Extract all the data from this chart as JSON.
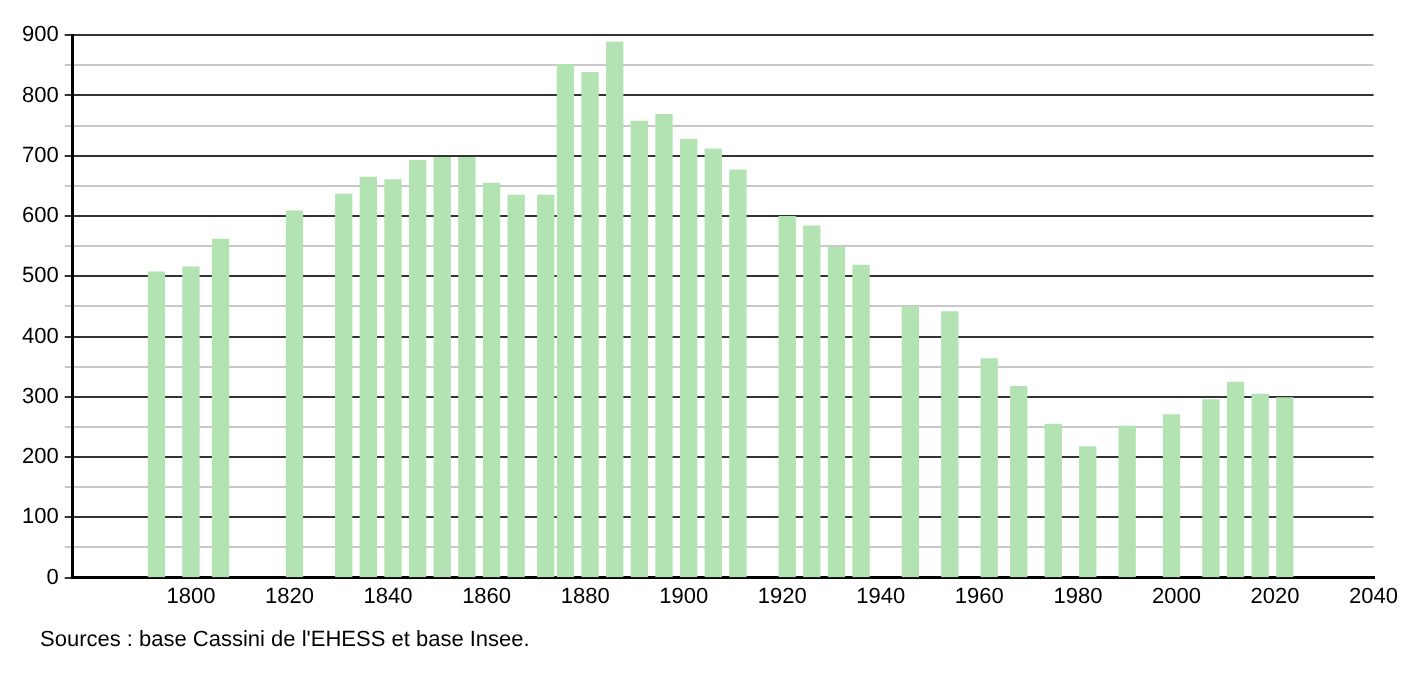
{
  "chart_data": {
    "type": "bar",
    "x": [
      1793,
      1800,
      1806,
      1821,
      1831,
      1836,
      1841,
      1846,
      1851,
      1856,
      1861,
      1866,
      1872,
      1876,
      1881,
      1886,
      1891,
      1896,
      1901,
      1906,
      1911,
      1921,
      1926,
      1931,
      1936,
      1946,
      1954,
      1962,
      1968,
      1975,
      1982,
      1990,
      1999,
      2007,
      2012,
      2017,
      2022
    ],
    "values": [
      507,
      515,
      561,
      608,
      636,
      664,
      660,
      692,
      697,
      697,
      654,
      634,
      634,
      851,
      838,
      888,
      757,
      768,
      727,
      711,
      676,
      599,
      583,
      548,
      518,
      449,
      441,
      363,
      317,
      254,
      217,
      251,
      270,
      295,
      324,
      304,
      298
    ],
    "color": "#b3e3b3",
    "xlim": [
      1776,
      2040
    ],
    "xticks": [
      1800,
      1820,
      1840,
      1860,
      1880,
      1900,
      1920,
      1940,
      1960,
      1980,
      2000,
      2020,
      2040
    ],
    "ylim": [
      0,
      900
    ],
    "yticks": [
      0,
      {
        "value": 50,
        "label": null
      },
      100,
      {
        "value": 150,
        "label": null
      },
      200,
      {
        "value": 250,
        "label": null
      },
      300,
      {
        "value": 350,
        "label": null
      },
      400,
      {
        "value": 450,
        "label": null
      },
      500,
      {
        "value": 550,
        "label": null
      },
      600,
      {
        "value": 650,
        "label": null
      },
      700,
      {
        "value": 750,
        "label": null
      },
      800,
      {
        "value": 850,
        "label": null
      },
      900
    ],
    "grid": "y",
    "annotations": [
      "Sources : base Cassini de l'EHESS et base Insee."
    ]
  }
}
